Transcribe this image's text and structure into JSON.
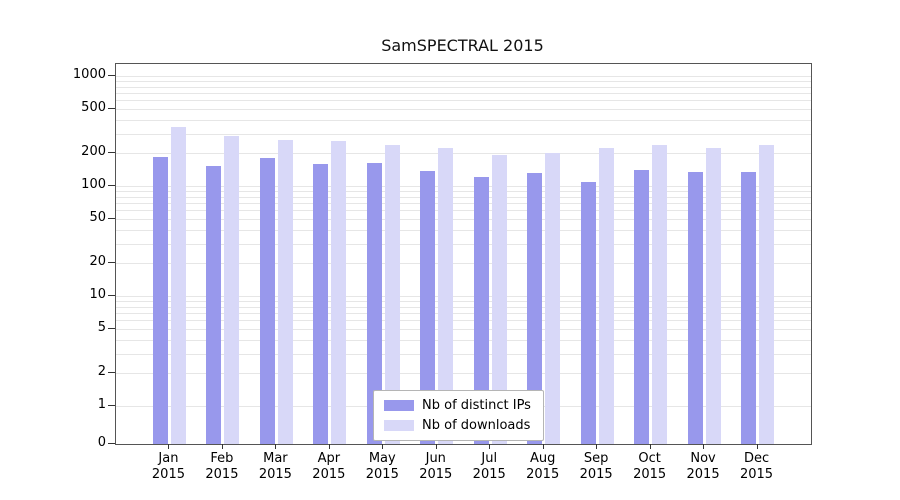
{
  "title": "SamSPECTRAL 2015",
  "chart_data": {
    "type": "bar",
    "title": "SamSPECTRAL 2015",
    "categories": [
      "Jan",
      "Feb",
      "Mar",
      "Apr",
      "May",
      "Jun",
      "Jul",
      "Aug",
      "Sep",
      "Oct",
      "Nov",
      "Dec"
    ],
    "year_label": "2015",
    "series": [
      {
        "name": "Nb of distinct IPs",
        "color": "#9898ec",
        "values": [
          185,
          152,
          178,
          158,
          163,
          138,
          122,
          132,
          108,
          140,
          133,
          134
        ]
      },
      {
        "name": "Nb of downloads",
        "color": "#d8d8f8",
        "values": [
          345,
          283,
          262,
          256,
          238,
          221,
          193,
          199,
          223,
          236,
          221,
          236
        ]
      }
    ],
    "y_ticks": [
      0,
      1,
      2,
      5,
      10,
      20,
      50,
      100,
      200,
      500,
      1000
    ],
    "y_scale": "log",
    "ylim": [
      0,
      1000
    ],
    "grid": true,
    "legend_position": "bottom-center"
  }
}
